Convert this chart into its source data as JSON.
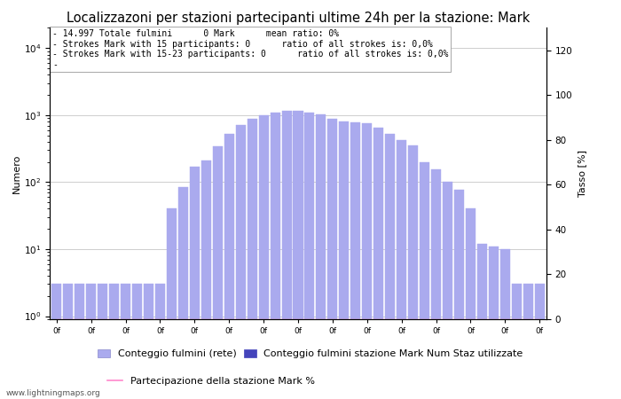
{
  "title": "Localizzazoni per stazioni partecipanti ultime 24h per la stazione: Mark",
  "ylabel_left": "Numero",
  "ylabel_right": "Tasso [%]",
  "annotation_lines": [
    "14.997 Totale fulmini      0 Mark      mean ratio: 0%",
    "Strokes Mark with 15 participants: 0      ratio of all strokes is: 0,0%",
    "Strokes Mark with 15-23 participants: 0      ratio of all strokes is: 0,0%"
  ],
  "bar_light": [
    3,
    3,
    3,
    3,
    3,
    3,
    3,
    3,
    3,
    3,
    40,
    85,
    170,
    210,
    340,
    520,
    720,
    870,
    980,
    1080,
    1150,
    1150,
    1080,
    1010,
    870,
    800,
    770,
    750,
    640,
    530,
    430,
    350,
    200,
    155,
    100,
    78,
    40,
    12,
    11,
    10,
    3,
    3,
    3
  ],
  "bar_dark": [
    0,
    0,
    0,
    0,
    0,
    0,
    0,
    0,
    0,
    0,
    0,
    0,
    0,
    0,
    0,
    0,
    0,
    0,
    0,
    0,
    0,
    0,
    0,
    0,
    0,
    0,
    0,
    0,
    0,
    0,
    0,
    0,
    0,
    0,
    0,
    0,
    0,
    0,
    0,
    0,
    0,
    0,
    0
  ],
  "participation_pct": [
    0,
    0,
    0,
    0,
    0,
    0,
    0,
    0,
    0,
    0,
    0,
    0,
    0,
    0,
    0,
    0,
    0,
    0,
    0,
    0,
    0,
    0,
    0,
    0,
    0,
    0,
    0,
    0,
    0,
    0,
    0,
    0,
    0,
    0,
    0,
    0,
    0,
    0,
    0,
    0,
    0,
    0,
    0
  ],
  "n_bars": 43,
  "color_light_bar": "#aaaaee",
  "color_dark_bar": "#4444bb",
  "color_line": "#ff88cc",
  "ylim_right": [
    0,
    130
  ],
  "background_color": "#ffffff",
  "grid_color": "#bbbbbb",
  "title_fontsize": 10.5,
  "label_fontsize": 8,
  "annotation_fontsize": 7,
  "tick_fontsize": 7.5,
  "watermark": "www.lightningmaps.org",
  "legend_label_0": "Conteggio fulmini (rete)",
  "legend_label_1": "Conteggio fulmini stazione Mark",
  "legend_label_2": "Num Staz utilizzate",
  "legend_label_3": "Partecipazione della stazione Mark %"
}
